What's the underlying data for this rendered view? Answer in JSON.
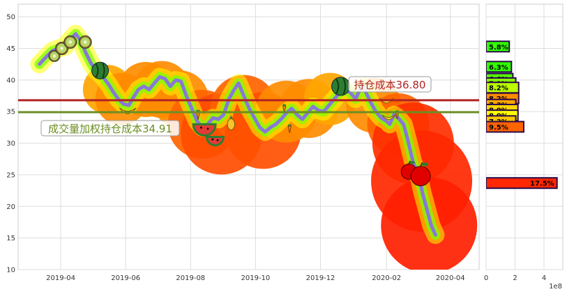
{
  "chart_data": [
    {
      "type": "line",
      "title": "",
      "xlabel": "",
      "ylabel": "",
      "ylim": [
        10,
        52
      ],
      "xlim": [
        "2019-02-20",
        "2020-04-28"
      ],
      "yticks": [
        10,
        15,
        20,
        25,
        30,
        35,
        40,
        45,
        50
      ],
      "xticks": [
        "2019-04",
        "2019-06",
        "2019-08",
        "2019-10",
        "2019-12",
        "2020-02",
        "2020-04"
      ],
      "grid": true,
      "series": [
        {
          "color": "#8878d8",
          "points": [
            [
              "2019-03-12",
              42.5
            ],
            [
              "2019-03-18",
              43.6
            ],
            [
              "2019-03-24",
              44.6
            ],
            [
              "2019-03-30",
              45.0
            ],
            [
              "2019-04-05",
              45.3
            ],
            [
              "2019-04-11",
              46.6
            ],
            [
              "2019-04-15",
              47.3
            ],
            [
              "2019-04-20",
              46.2
            ],
            [
              "2019-04-24",
              44.5
            ],
            [
              "2019-04-29",
              42.8
            ],
            [
              "2019-05-04",
              41.5
            ],
            [
              "2019-05-08",
              41.0
            ],
            [
              "2019-05-12",
              40.2
            ],
            [
              "2019-05-16",
              39.3
            ],
            [
              "2019-05-20",
              38.2
            ],
            [
              "2019-05-25",
              37.0
            ],
            [
              "2019-05-30",
              36.2
            ],
            [
              "2019-06-04",
              36.0
            ],
            [
              "2019-06-08",
              37.2
            ],
            [
              "2019-06-13",
              38.5
            ],
            [
              "2019-06-18",
              39.0
            ],
            [
              "2019-06-23",
              38.5
            ],
            [
              "2019-06-28",
              39.5
            ],
            [
              "2019-07-03",
              40.5
            ],
            [
              "2019-07-08",
              40.2
            ],
            [
              "2019-07-13",
              39.0
            ],
            [
              "2019-07-18",
              40.0
            ],
            [
              "2019-07-23",
              39.8
            ],
            [
              "2019-07-28",
              37.5
            ],
            [
              "2019-08-02",
              35.5
            ],
            [
              "2019-08-07",
              33.5
            ],
            [
              "2019-08-12",
              32.5
            ],
            [
              "2019-08-17",
              33.0
            ],
            [
              "2019-08-22",
              34.0
            ],
            [
              "2019-08-27",
              33.8
            ],
            [
              "2019-09-01",
              34.5
            ],
            [
              "2019-09-06",
              37.0
            ],
            [
              "2019-09-11",
              38.5
            ],
            [
              "2019-09-15",
              39.5
            ],
            [
              "2019-09-20",
              37.5
            ],
            [
              "2019-09-25",
              35.5
            ],
            [
              "2019-09-30",
              34.0
            ],
            [
              "2019-10-05",
              32.5
            ],
            [
              "2019-10-10",
              31.8
            ],
            [
              "2019-10-15",
              32.5
            ],
            [
              "2019-10-20",
              33.0
            ],
            [
              "2019-10-25",
              33.8
            ],
            [
              "2019-10-30",
              34.8
            ],
            [
              "2019-11-04",
              35.5
            ],
            [
              "2019-11-09",
              34.5
            ],
            [
              "2019-11-14",
              33.8
            ],
            [
              "2019-11-19",
              34.8
            ],
            [
              "2019-11-24",
              35.8
            ],
            [
              "2019-11-29",
              35.2
            ],
            [
              "2019-12-04",
              35.0
            ],
            [
              "2019-12-09",
              36.0
            ],
            [
              "2019-12-14",
              37.0
            ],
            [
              "2019-12-19",
              38.0
            ],
            [
              "2019-12-24",
              38.5
            ],
            [
              "2019-12-29",
              38.0
            ],
            [
              "2020-01-03",
              37.0
            ],
            [
              "2020-01-07",
              38.5
            ],
            [
              "2020-01-10",
              39.0
            ],
            [
              "2020-01-17",
              36.5
            ],
            [
              "2020-01-22",
              35.0
            ],
            [
              "2020-01-27",
              34.0
            ],
            [
              "2020-02-01",
              33.5
            ],
            [
              "2020-02-04",
              33.0
            ],
            [
              "2020-02-08",
              34.5
            ],
            [
              "2020-02-12",
              34.0
            ],
            [
              "2020-02-17",
              33.0
            ],
            [
              "2020-02-21",
              30.5
            ],
            [
              "2020-02-26",
              27.0
            ],
            [
              "2020-03-02",
              25.0
            ],
            [
              "2020-03-06",
              22.0
            ],
            [
              "2020-03-10",
              19.5
            ],
            [
              "2020-03-14",
              17.0
            ],
            [
              "2020-03-18",
              15.5
            ]
          ]
        }
      ],
      "bubbles": [
        {
          "date": "2019-05-15",
          "value": 38.5,
          "size": 0.22,
          "color": "#ffa500"
        },
        {
          "date": "2019-05-28",
          "value": 37.0,
          "size": 0.25,
          "color": "#ff8c00"
        },
        {
          "date": "2019-06-20",
          "value": 38.5,
          "size": 0.28,
          "color": "#ff8c00"
        },
        {
          "date": "2019-07-05",
          "value": 38.5,
          "size": 0.3,
          "color": "#ff8c00"
        },
        {
          "date": "2019-07-22",
          "value": 37.0,
          "size": 0.3,
          "color": "#ff8c00"
        },
        {
          "date": "2019-08-12",
          "value": 33.0,
          "size": 0.42,
          "color": "#ff6400"
        },
        {
          "date": "2019-08-30",
          "value": 31.5,
          "size": 0.55,
          "color": "#ff4d00"
        },
        {
          "date": "2019-09-20",
          "value": 35.5,
          "size": 0.4,
          "color": "#ff6400"
        },
        {
          "date": "2019-10-08",
          "value": 32.0,
          "size": 0.5,
          "color": "#ff5000"
        },
        {
          "date": "2019-10-30",
          "value": 35.0,
          "size": 0.35,
          "color": "#ff8c00"
        },
        {
          "date": "2019-11-20",
          "value": 35.5,
          "size": 0.32,
          "color": "#ff8c00"
        },
        {
          "date": "2019-12-10",
          "value": 37.0,
          "size": 0.25,
          "color": "#ffa500"
        },
        {
          "date": "2020-01-20",
          "value": 36.0,
          "size": 0.28,
          "color": "#ff8c00"
        },
        {
          "date": "2020-02-12",
          "value": 33.0,
          "size": 0.35,
          "color": "#ff6400"
        },
        {
          "date": "2020-02-26",
          "value": 30.0,
          "size": 0.55,
          "color": "#ff3000"
        },
        {
          "date": "2020-03-05",
          "value": 24.0,
          "size": 0.75,
          "color": "#ff2800"
        },
        {
          "date": "2020-03-12",
          "value": 17.0,
          "size": 0.7,
          "color": "#ff2000"
        }
      ],
      "hlines": [
        {
          "value": 36.8,
          "color": "#b22222",
          "label": "持仓成本36.80"
        },
        {
          "value": 34.91,
          "color": "#6b8e23",
          "label": "成交量加权持仓成本34.91"
        }
      ]
    },
    {
      "type": "bar",
      "orientation": "horizontal",
      "xlim": [
        0,
        5.3
      ],
      "xticks": [
        0,
        2,
        4
      ],
      "x_scale_label": "1e8",
      "ylim": [
        10,
        52
      ],
      "bars": [
        {
          "price": 45.3,
          "value": 1.6,
          "label": "5.8%",
          "color": "#32ff00"
        },
        {
          "price": 42.1,
          "value": 1.75,
          "label": "6.3%",
          "color": "#32ff00"
        },
        {
          "price": 40.2,
          "value": 1.85,
          "label": "6.6%",
          "color": "#55ff00"
        },
        {
          "price": 39.5,
          "value": 2.05,
          "label": "7.3%",
          "color": "#88ff00"
        },
        {
          "price": 38.8,
          "value": 2.25,
          "label": "8.2%",
          "color": "#bbff00"
        },
        {
          "price": 37.1,
          "value": 2.25,
          "label": "8.2%",
          "color": "#ff8c00"
        },
        {
          "price": 36.1,
          "value": 2.05,
          "label": "7.3%",
          "color": "#ffa500"
        },
        {
          "price": 35.3,
          "value": 2.2,
          "label": "8.0%",
          "color": "#ffd700"
        },
        {
          "price": 34.4,
          "value": 2.2,
          "label": "8.0%",
          "color": "#ffff00"
        },
        {
          "price": 33.5,
          "value": 2.05,
          "label": "7.3%",
          "color": "#ffc800"
        },
        {
          "price": 32.6,
          "value": 2.6,
          "label": "9.5%",
          "color": "#ff6400"
        },
        {
          "price": 23.7,
          "value": 4.9,
          "label": "17.5%",
          "color": "#ff2800"
        }
      ]
    }
  ]
}
